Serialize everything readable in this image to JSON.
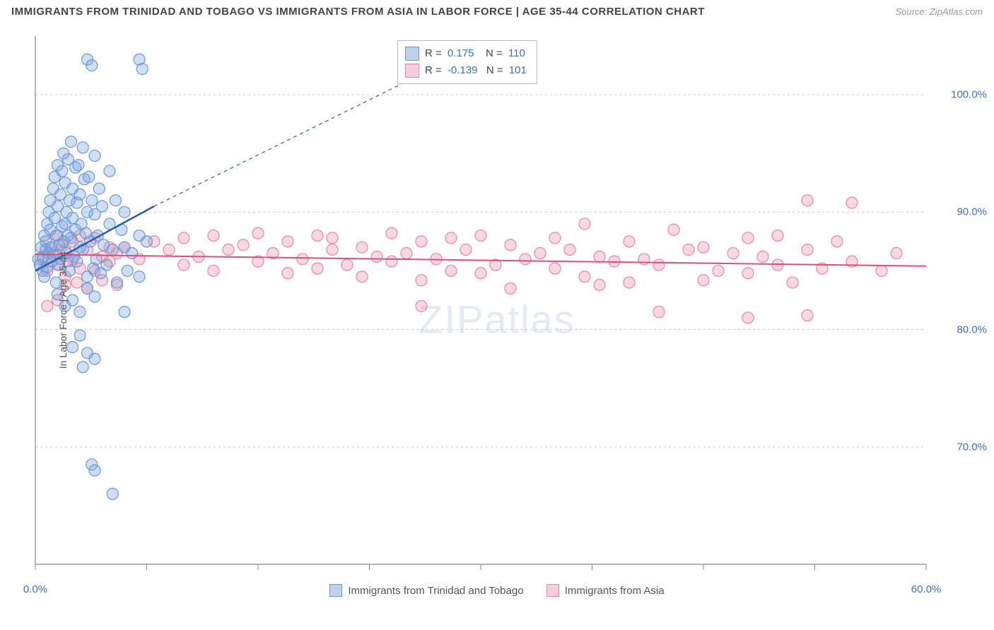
{
  "title": "IMMIGRANTS FROM TRINIDAD AND TOBAGO VS IMMIGRANTS FROM ASIA IN LABOR FORCE | AGE 35-44 CORRELATION CHART",
  "source": "Source: ZipAtlas.com",
  "watermark": "ZIPatlas",
  "chart": {
    "type": "scatter",
    "background_color": "#ffffff",
    "grid_color": "#cccccc",
    "axis_color": "#888888",
    "xlim": [
      0,
      60
    ],
    "ylim": [
      60,
      105
    ],
    "ytick_labels": [
      "70.0%",
      "80.0%",
      "90.0%",
      "100.0%"
    ],
    "ytick_values": [
      70,
      80,
      90,
      100
    ],
    "xtick_label_min": "0.0%",
    "xtick_label_max": "60.0%",
    "xtick_values": [
      0,
      7.5,
      15,
      22.5,
      30,
      37.5,
      45,
      52.5,
      60
    ],
    "ylabel": "In Labor Force | Age 35-44",
    "series_a": {
      "name": "Immigrants from Trinidad and Tobago",
      "color_fill": "rgba(120,160,220,0.35)",
      "color_stroke": "#6a98d8",
      "swatch_fill": "#bcd3f0",
      "swatch_border": "#6a98d8",
      "r_value": "0.175",
      "n_value": "110",
      "trend": {
        "x1": 0,
        "y1": 85,
        "x2": 8,
        "y2": 90.5,
        "dash_x2": 28,
        "dash_y2": 103
      },
      "points": [
        [
          0.2,
          86
        ],
        [
          0.3,
          85.5
        ],
        [
          0.4,
          87
        ],
        [
          0.5,
          86.2
        ],
        [
          0.5,
          85
        ],
        [
          0.6,
          88
        ],
        [
          0.6,
          84.5
        ],
        [
          0.7,
          87.5
        ],
        [
          0.7,
          86.8
        ],
        [
          0.8,
          89
        ],
        [
          0.8,
          85.3
        ],
        [
          0.9,
          90
        ],
        [
          0.9,
          86.5
        ],
        [
          1.0,
          88.5
        ],
        [
          1.0,
          91
        ],
        [
          1.1,
          87
        ],
        [
          1.1,
          85.8
        ],
        [
          1.2,
          92
        ],
        [
          1.2,
          86.3
        ],
        [
          1.3,
          89.5
        ],
        [
          1.3,
          93
        ],
        [
          1.4,
          88
        ],
        [
          1.4,
          84
        ],
        [
          1.5,
          90.5
        ],
        [
          1.5,
          94
        ],
        [
          1.6,
          87.2
        ],
        [
          1.6,
          85.5
        ],
        [
          1.7,
          91.5
        ],
        [
          1.7,
          86
        ],
        [
          1.8,
          93.5
        ],
        [
          1.8,
          88.8
        ],
        [
          1.9,
          95
        ],
        [
          1.9,
          87.5
        ],
        [
          2.0,
          92.5
        ],
        [
          2.0,
          89
        ],
        [
          2.1,
          90
        ],
        [
          2.1,
          86.5
        ],
        [
          2.2,
          94.5
        ],
        [
          2.2,
          88
        ],
        [
          2.3,
          91
        ],
        [
          2.3,
          85
        ],
        [
          2.4,
          96
        ],
        [
          2.4,
          87.8
        ],
        [
          2.5,
          89.5
        ],
        [
          2.5,
          92
        ],
        [
          2.6,
          86.2
        ],
        [
          2.7,
          93.8
        ],
        [
          2.7,
          88.5
        ],
        [
          2.8,
          90.8
        ],
        [
          2.8,
          85.8
        ],
        [
          2.9,
          94
        ],
        [
          3.0,
          87
        ],
        [
          3.0,
          91.5
        ],
        [
          3.1,
          89
        ],
        [
          3.2,
          95.5
        ],
        [
          3.2,
          86.8
        ],
        [
          3.3,
          92.8
        ],
        [
          3.4,
          88.2
        ],
        [
          3.5,
          90
        ],
        [
          3.5,
          84.5
        ],
        [
          3.6,
          93
        ],
        [
          3.7,
          87.5
        ],
        [
          3.8,
          91
        ],
        [
          3.9,
          85.2
        ],
        [
          4.0,
          89.8
        ],
        [
          4.0,
          94.8
        ],
        [
          4.1,
          86
        ],
        [
          4.2,
          88
        ],
        [
          4.3,
          92
        ],
        [
          4.4,
          84.8
        ],
        [
          4.5,
          90.5
        ],
        [
          4.6,
          87.2
        ],
        [
          4.8,
          85.5
        ],
        [
          5.0,
          89
        ],
        [
          5.0,
          93.5
        ],
        [
          5.2,
          86.8
        ],
        [
          5.4,
          91
        ],
        [
          5.5,
          84
        ],
        [
          5.8,
          88.5
        ],
        [
          6.0,
          87
        ],
        [
          6.0,
          90
        ],
        [
          6.2,
          85
        ],
        [
          6.5,
          86.5
        ],
        [
          7.0,
          88
        ],
        [
          7.0,
          84.5
        ],
        [
          7.5,
          87.5
        ],
        [
          1.5,
          83
        ],
        [
          2.0,
          82
        ],
        [
          2.5,
          82.5
        ],
        [
          3.0,
          81.5
        ],
        [
          3.5,
          83.5
        ],
        [
          4.0,
          82.8
        ],
        [
          2.5,
          78.5
        ],
        [
          3.0,
          79.5
        ],
        [
          3.5,
          78
        ],
        [
          4.0,
          77.5
        ],
        [
          3.2,
          76.8
        ],
        [
          3.5,
          103
        ],
        [
          3.8,
          102.5
        ],
        [
          7.0,
          103
        ],
        [
          7.2,
          102.2
        ],
        [
          3.8,
          68.5
        ],
        [
          4.0,
          68
        ],
        [
          5.2,
          66
        ],
        [
          6.0,
          81.5
        ]
      ]
    },
    "series_b": {
      "name": "Immigrants from Asia",
      "color_fill": "rgba(240,140,170,0.35)",
      "color_stroke": "#e589a4",
      "swatch_fill": "#f6cdd9",
      "swatch_border": "#e589a4",
      "r_value": "-0.139",
      "n_value": "101",
      "trend": {
        "x1": 0,
        "y1": 86.4,
        "x2": 60,
        "y2": 85.4
      },
      "points": [
        [
          0.5,
          86
        ],
        [
          0.8,
          85
        ],
        [
          1.0,
          87
        ],
        [
          1.2,
          86.5
        ],
        [
          1.5,
          88
        ],
        [
          1.5,
          85.5
        ],
        [
          1.8,
          87.2
        ],
        [
          2.0,
          86.8
        ],
        [
          2.0,
          84.5
        ],
        [
          2.2,
          85.8
        ],
        [
          2.5,
          87.5
        ],
        [
          2.5,
          86
        ],
        [
          2.8,
          84
        ],
        [
          3.0,
          88
        ],
        [
          3.0,
          85.2
        ],
        [
          3.5,
          86.8
        ],
        [
          3.5,
          83.5
        ],
        [
          4.0,
          87.8
        ],
        [
          4.0,
          85
        ],
        [
          4.5,
          86.2
        ],
        [
          4.5,
          84.2
        ],
        [
          5.0,
          87
        ],
        [
          5.0,
          85.8
        ],
        [
          5.5,
          86.5
        ],
        [
          5.5,
          83.8
        ],
        [
          1.5,
          82.5
        ],
        [
          2.0,
          83.8
        ],
        [
          0.8,
          82
        ],
        [
          6,
          87
        ],
        [
          7,
          86
        ],
        [
          8,
          87.5
        ],
        [
          9,
          86.8
        ],
        [
          10,
          85.5
        ],
        [
          10,
          87.8
        ],
        [
          11,
          86.2
        ],
        [
          12,
          88
        ],
        [
          12,
          85
        ],
        [
          13,
          86.8
        ],
        [
          14,
          87.2
        ],
        [
          15,
          85.8
        ],
        [
          15,
          88.2
        ],
        [
          16,
          86.5
        ],
        [
          17,
          87.5
        ],
        [
          17,
          84.8
        ],
        [
          18,
          86
        ],
        [
          19,
          88
        ],
        [
          19,
          85.2
        ],
        [
          20,
          86.8
        ],
        [
          20,
          87.8
        ],
        [
          21,
          85.5
        ],
        [
          22,
          87
        ],
        [
          22,
          84.5
        ],
        [
          23,
          86.2
        ],
        [
          24,
          88.2
        ],
        [
          24,
          85.8
        ],
        [
          25,
          86.5
        ],
        [
          26,
          87.5
        ],
        [
          26,
          84.2
        ],
        [
          27,
          86
        ],
        [
          28,
          87.8
        ],
        [
          28,
          85
        ],
        [
          29,
          86.8
        ],
        [
          30,
          88
        ],
        [
          30,
          84.8
        ],
        [
          31,
          85.5
        ],
        [
          32,
          87.2
        ],
        [
          33,
          86
        ],
        [
          34,
          86.5
        ],
        [
          35,
          85.2
        ],
        [
          35,
          87.8
        ],
        [
          36,
          86.8
        ],
        [
          37,
          84.5
        ],
        [
          37,
          89
        ],
        [
          38,
          86.2
        ],
        [
          39,
          85.8
        ],
        [
          40,
          87.5
        ],
        [
          40,
          84
        ],
        [
          41,
          86
        ],
        [
          42,
          85.5
        ],
        [
          43,
          88.5
        ],
        [
          44,
          86.8
        ],
        [
          45,
          84.2
        ],
        [
          45,
          87
        ],
        [
          46,
          85
        ],
        [
          47,
          86.5
        ],
        [
          48,
          84.8
        ],
        [
          48,
          87.8
        ],
        [
          49,
          86.2
        ],
        [
          50,
          85.5
        ],
        [
          50,
          88
        ],
        [
          51,
          84
        ],
        [
          52,
          86.8
        ],
        [
          52,
          91
        ],
        [
          53,
          85.2
        ],
        [
          54,
          87.5
        ],
        [
          55,
          85.8
        ],
        [
          55,
          90.8
        ],
        [
          57,
          85
        ],
        [
          58,
          86.5
        ],
        [
          26,
          82
        ],
        [
          42,
          81.5
        ],
        [
          48,
          81
        ],
        [
          52,
          81.2
        ],
        [
          32,
          83.5
        ],
        [
          38,
          83.8
        ]
      ]
    }
  },
  "labels": {
    "r_label": "R =",
    "n_label": "N ="
  }
}
